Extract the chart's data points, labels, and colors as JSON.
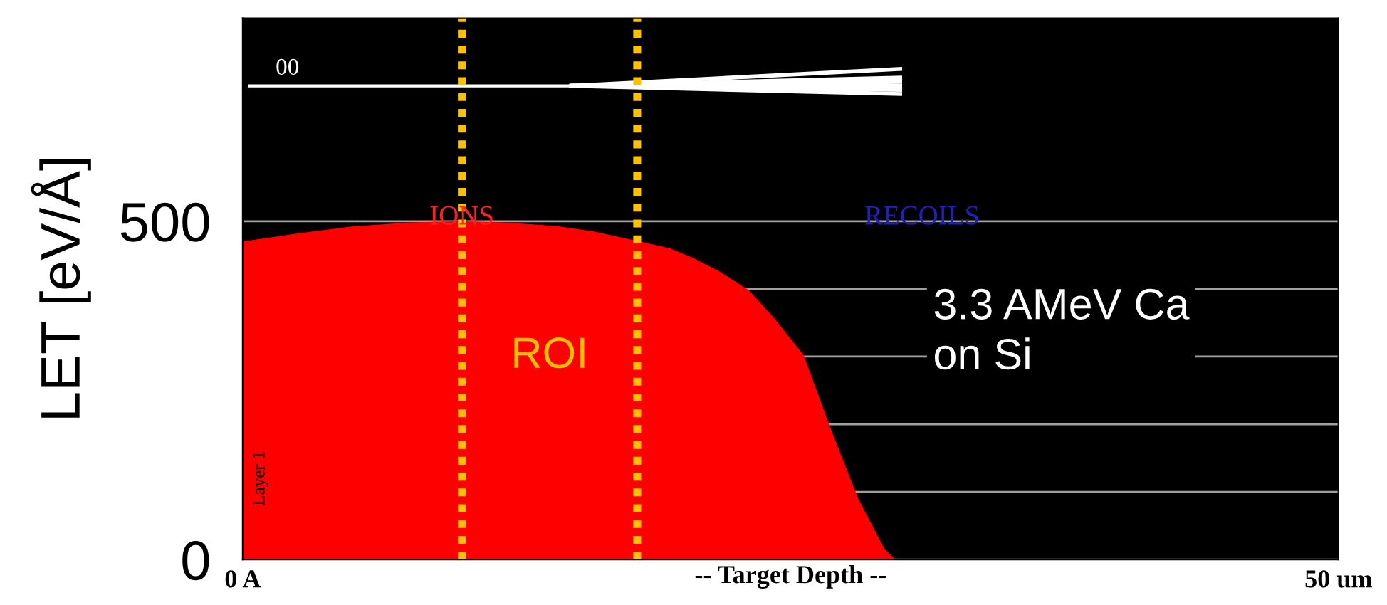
{
  "chart_data": {
    "type": "area",
    "ylabel": "LET [eV/Å]",
    "xlabel": "-- Target Depth --",
    "x": [
      0,
      2.5,
      4.9,
      7.5,
      9.9,
      12,
      14.3,
      16,
      18.1,
      19.5,
      20.6,
      21.8,
      23.1,
      24.3,
      25.6,
      26.8,
      28.1,
      29.3,
      29.8
    ],
    "series": [
      {
        "color": "#ff0000",
        "values": [
          470,
          482,
          492,
          498,
          500,
          498,
          493,
          485,
          470,
          460,
          445,
          425,
          398,
          355,
          302,
          196,
          89,
          15,
          0
        ]
      }
    ],
    "xlim": [
      0,
      50
    ],
    "xticks": [
      {
        "value": 0,
        "label": "0 A"
      },
      {
        "value": 50,
        "label": "50 um"
      }
    ],
    "ylim": [
      0,
      800
    ],
    "yticks": [
      0,
      {
        "value": 100,
        "label": null
      },
      {
        "value": 200,
        "label": null
      },
      {
        "value": 300,
        "label": null
      },
      {
        "value": 400,
        "label": null
      },
      500
    ],
    "grid": "y",
    "ref_lines": [
      {
        "axis": "x",
        "value": 10,
        "color": "#ffc000",
        "line_style": "dotted"
      },
      {
        "axis": "x",
        "value": 18,
        "color": "#ffc000",
        "line_style": "dotted"
      }
    ],
    "annotations": [
      "00",
      "IONS",
      "RECOILS",
      "Layer 1",
      "3.3 AMeV Ca\non Si",
      "ROI"
    ]
  }
}
